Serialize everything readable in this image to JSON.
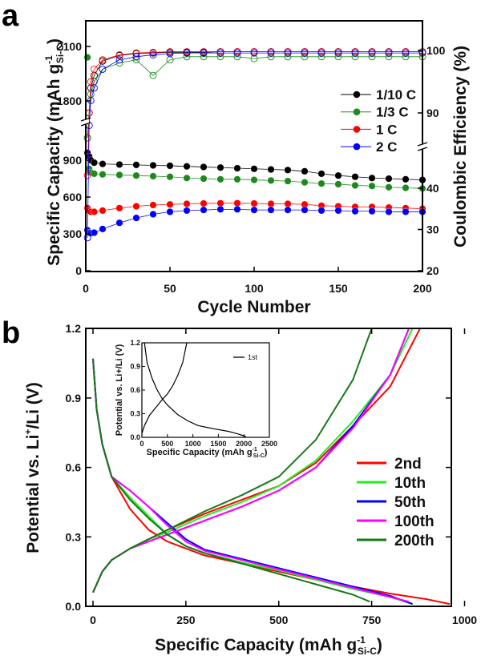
{
  "chart_data": [
    {
      "panel_label": "a",
      "type": "scatter",
      "xlabel": "Cycle Number",
      "ylabel": "Specific Capacity (mAh g",
      "ylabel_sup": "-1",
      "ylabel_sub": "Si-C",
      "ylabel_close": ")",
      "y2label": "Coulombic Efficiency (%)",
      "xlim": [
        0,
        200
      ],
      "xticks": [
        "0",
        "50",
        "100",
        "150",
        "200"
      ],
      "yticks": [
        "0",
        "300",
        "600",
        "900",
        "1800",
        "2100"
      ],
      "y2ticks": [
        "20",
        "30",
        "40",
        "90",
        "100"
      ],
      "axis_breaks": "left axis broken between ~1150 and 1700; right axis broken between ~48 and 85",
      "legend_position": "right-middle",
      "series": [
        {
          "name": "1/10 C",
          "color": "#000000",
          "cycles": [
            1,
            2,
            3,
            5,
            10,
            20,
            30,
            40,
            50,
            60,
            70,
            80,
            90,
            100,
            110,
            120,
            130,
            140,
            150,
            160,
            170,
            180,
            190,
            200
          ],
          "capacity": [
            960,
            930,
            900,
            880,
            870,
            865,
            862,
            858,
            855,
            850,
            845,
            840,
            835,
            830,
            825,
            820,
            810,
            790,
            775,
            765,
            755,
            750,
            745,
            740
          ],
          "ce": [
            86,
            90,
            94,
            96,
            98.3,
            99.2,
            99.5,
            99.6,
            99.7,
            99.7,
            99.7,
            99.8,
            99.8,
            99.8,
            99.8,
            99.8,
            99.8,
            99.8,
            99.8,
            99.8,
            99.8,
            99.8,
            99.8,
            99.8
          ]
        },
        {
          "name": "1/3 C",
          "color": "#1e8a1e",
          "cycles": [
            1,
            2,
            3,
            5,
            10,
            20,
            30,
            40,
            50,
            60,
            70,
            80,
            90,
            100,
            110,
            120,
            130,
            140,
            150,
            160,
            170,
            180,
            190,
            200
          ],
          "capacity": [
            2040,
            830,
            800,
            790,
            785,
            780,
            775,
            770,
            765,
            755,
            750,
            745,
            745,
            740,
            735,
            730,
            720,
            710,
            705,
            695,
            690,
            680,
            675,
            670
          ],
          "ce": [
            86,
            90,
            93,
            95,
            97,
            98,
            98.5,
            96,
            98.5,
            99,
            99,
            99,
            99,
            98.7,
            99,
            99,
            99,
            99,
            99,
            99,
            99,
            99,
            99,
            99
          ]
        },
        {
          "name": "1 C",
          "color": "#ff0000",
          "cycles": [
            1,
            2,
            3,
            5,
            10,
            20,
            30,
            40,
            50,
            60,
            70,
            80,
            90,
            100,
            110,
            120,
            130,
            140,
            150,
            160,
            170,
            180,
            190,
            200
          ],
          "capacity": [
            510,
            490,
            480,
            480,
            490,
            510,
            525,
            535,
            540,
            545,
            548,
            550,
            550,
            548,
            545,
            545,
            540,
            530,
            525,
            520,
            520,
            515,
            510,
            505
          ],
          "ce": [
            80,
            90,
            95,
            97,
            98.5,
            99.3,
            99.6,
            99.7,
            99.8,
            99.8,
            99.8,
            99.8,
            99.8,
            99.8,
            99.8,
            99.8,
            99.8,
            99.8,
            99.8,
            99.8,
            99.8,
            99.8,
            99.8,
            99.8
          ]
        },
        {
          "name": "2 C",
          "color": "#0000ff",
          "cycles": [
            1,
            2,
            3,
            5,
            10,
            20,
            30,
            40,
            50,
            60,
            70,
            80,
            90,
            100,
            110,
            120,
            130,
            140,
            150,
            160,
            170,
            180,
            190,
            200
          ],
          "capacity": [
            330,
            310,
            305,
            310,
            340,
            390,
            430,
            460,
            480,
            490,
            495,
            500,
            500,
            495,
            495,
            495,
            495,
            490,
            490,
            485,
            485,
            480,
            480,
            480
          ],
          "ce": [
            28,
            88,
            92,
            94,
            97,
            98.5,
            99,
            99.3,
            99.5,
            99.6,
            99.6,
            99.6,
            99.6,
            99.6,
            99.6,
            99.6,
            99.6,
            99.6,
            99.6,
            99.6,
            99.6,
            99.6,
            99.6,
            99.6
          ]
        }
      ]
    },
    {
      "panel_label": "b",
      "type": "line",
      "xlabel": "Specific Capacity (mAh g",
      "xlabel_sup": "-1",
      "xlabel_sub": "Si-C",
      "xlabel_close": ")",
      "ylabel": "Potential vs. Li",
      "ylabel_sup": "+",
      "ylabel_rest": "/Li (V)",
      "xlim": [
        -20,
        1000
      ],
      "ylim": [
        0,
        1.2
      ],
      "xticks": [
        "0",
        "250",
        "500",
        "750",
        "1000"
      ],
      "yticks": [
        "0.0",
        "0.3",
        "0.6",
        "0.9",
        "1.2"
      ],
      "legend_position": "right-middle",
      "series": [
        {
          "name": "2nd",
          "color": "#ff0000",
          "discharge": [
            [
              0,
              1.07
            ],
            [
              10,
              0.85
            ],
            [
              25,
              0.7
            ],
            [
              50,
              0.56
            ],
            [
              100,
              0.42
            ],
            [
              150,
              0.33
            ],
            [
              200,
              0.28
            ],
            [
              250,
              0.25
            ],
            [
              300,
              0.22
            ],
            [
              400,
              0.185
            ],
            [
              500,
              0.15
            ],
            [
              600,
              0.115
            ],
            [
              700,
              0.085
            ],
            [
              800,
              0.055
            ],
            [
              900,
              0.03
            ],
            [
              960,
              0.01
            ]
          ],
          "charge": [
            [
              0,
              0.06
            ],
            [
              25,
              0.15
            ],
            [
              50,
              0.2
            ],
            [
              100,
              0.25
            ],
            [
              150,
              0.29
            ],
            [
              200,
              0.33
            ],
            [
              300,
              0.4
            ],
            [
              400,
              0.46
            ],
            [
              500,
              0.52
            ],
            [
              600,
              0.62
            ],
            [
              700,
              0.78
            ],
            [
              800,
              0.95
            ],
            [
              880,
              1.2
            ]
          ]
        },
        {
          "name": "10th",
          "color": "#22ee22",
          "discharge": [
            [
              0,
              1.07
            ],
            [
              10,
              0.85
            ],
            [
              25,
              0.7
            ],
            [
              50,
              0.56
            ],
            [
              100,
              0.47
            ],
            [
              150,
              0.39
            ],
            [
              200,
              0.31
            ],
            [
              250,
              0.26
            ],
            [
              300,
              0.23
            ],
            [
              400,
              0.19
            ],
            [
              500,
              0.155
            ],
            [
              600,
              0.115
            ],
            [
              700,
              0.075
            ],
            [
              800,
              0.04
            ],
            [
              860,
              0.01
            ]
          ],
          "charge": [
            [
              0,
              0.06
            ],
            [
              25,
              0.15
            ],
            [
              50,
              0.2
            ],
            [
              100,
              0.25
            ],
            [
              150,
              0.29
            ],
            [
              200,
              0.32
            ],
            [
              300,
              0.39
            ],
            [
              400,
              0.45
            ],
            [
              500,
              0.52
            ],
            [
              600,
              0.63
            ],
            [
              700,
              0.8
            ],
            [
              800,
              1.0
            ],
            [
              860,
              1.2
            ]
          ]
        },
        {
          "name": "50th",
          "color": "#0000ff",
          "discharge": [
            [
              0,
              1.07
            ],
            [
              10,
              0.85
            ],
            [
              25,
              0.7
            ],
            [
              50,
              0.56
            ],
            [
              100,
              0.5
            ],
            [
              150,
              0.43
            ],
            [
              200,
              0.36
            ],
            [
              250,
              0.29
            ],
            [
              300,
              0.245
            ],
            [
              400,
              0.205
            ],
            [
              500,
              0.165
            ],
            [
              600,
              0.125
            ],
            [
              700,
              0.085
            ],
            [
              800,
              0.045
            ],
            [
              860,
              0.01
            ]
          ],
          "charge": [
            [
              0,
              0.06
            ],
            [
              25,
              0.15
            ],
            [
              50,
              0.2
            ],
            [
              100,
              0.25
            ],
            [
              150,
              0.28
            ],
            [
              200,
              0.31
            ],
            [
              300,
              0.37
            ],
            [
              400,
              0.43
            ],
            [
              500,
              0.5
            ],
            [
              600,
              0.6
            ],
            [
              700,
              0.78
            ],
            [
              800,
              1.0
            ],
            [
              850,
              1.2
            ]
          ]
        },
        {
          "name": "100th",
          "color": "#ff00ff",
          "discharge": [
            [
              0,
              1.07
            ],
            [
              10,
              0.85
            ],
            [
              25,
              0.7
            ],
            [
              50,
              0.56
            ],
            [
              100,
              0.5
            ],
            [
              150,
              0.43
            ],
            [
              200,
              0.35
            ],
            [
              250,
              0.28
            ],
            [
              300,
              0.24
            ],
            [
              400,
              0.2
            ],
            [
              500,
              0.16
            ],
            [
              600,
              0.12
            ],
            [
              700,
              0.08
            ],
            [
              800,
              0.04
            ],
            [
              850,
              0.02
            ]
          ],
          "charge": [
            [
              0,
              0.06
            ],
            [
              25,
              0.15
            ],
            [
              50,
              0.2
            ],
            [
              100,
              0.25
            ],
            [
              150,
              0.28
            ],
            [
              200,
              0.31
            ],
            [
              300,
              0.37
            ],
            [
              400,
              0.43
            ],
            [
              500,
              0.5
            ],
            [
              600,
              0.6
            ],
            [
              700,
              0.77
            ],
            [
              800,
              1.0
            ],
            [
              850,
              1.2
            ]
          ]
        },
        {
          "name": "200th",
          "color": "#167a16",
          "discharge": [
            [
              0,
              1.07
            ],
            [
              10,
              0.85
            ],
            [
              25,
              0.7
            ],
            [
              50,
              0.56
            ],
            [
              100,
              0.46
            ],
            [
              150,
              0.38
            ],
            [
              200,
              0.31
            ],
            [
              250,
              0.26
            ],
            [
              300,
              0.23
            ],
            [
              400,
              0.185
            ],
            [
              500,
              0.14
            ],
            [
              600,
              0.095
            ],
            [
              700,
              0.05
            ],
            [
              745,
              0.02
            ]
          ],
          "charge": [
            [
              0,
              0.06
            ],
            [
              25,
              0.15
            ],
            [
              50,
              0.2
            ],
            [
              100,
              0.25
            ],
            [
              150,
              0.29
            ],
            [
              200,
              0.33
            ],
            [
              300,
              0.41
            ],
            [
              400,
              0.48
            ],
            [
              500,
              0.56
            ],
            [
              600,
              0.72
            ],
            [
              700,
              0.98
            ],
            [
              750,
              1.2
            ]
          ]
        }
      ],
      "inset": {
        "type": "line",
        "xlabel": "Specific Capacity (mAh g",
        "xlabel_sup": "-1",
        "xlabel_sub": "Si-C",
        "xlabel_close": ")",
        "ylabel": "Potential vs. Li+/Li (V)",
        "xlim": [
          0,
          2500
        ],
        "ylim": [
          0,
          1.2
        ],
        "xticks": [
          "0",
          "500",
          "1000",
          "1500",
          "2000",
          "2500"
        ],
        "yticks": [
          "0.0",
          "0.3",
          "0.6",
          "0.9",
          "1.2"
        ],
        "legend_position": "top-right",
        "series": [
          {
            "name": "1st",
            "color": "#000000",
            "discharge": [
              [
                50,
                1.2
              ],
              [
                100,
                0.95
              ],
              [
                200,
                0.75
              ],
              [
                300,
                0.6
              ],
              [
                400,
                0.49
              ],
              [
                500,
                0.41
              ],
              [
                700,
                0.29
              ],
              [
                900,
                0.21
              ],
              [
                1100,
                0.15
              ],
              [
                1400,
                0.11
              ],
              [
                1700,
                0.075
              ],
              [
                1900,
                0.04
              ],
              [
                2040,
                0.01
              ]
            ],
            "charge": [
              [
                0,
                0.05
              ],
              [
                50,
                0.15
              ],
              [
                150,
                0.28
              ],
              [
                300,
                0.4
              ],
              [
                400,
                0.48
              ],
              [
                500,
                0.55
              ],
              [
                600,
                0.65
              ],
              [
                700,
                0.78
              ],
              [
                800,
                0.95
              ],
              [
                880,
                1.2
              ]
            ]
          }
        ]
      }
    }
  ]
}
